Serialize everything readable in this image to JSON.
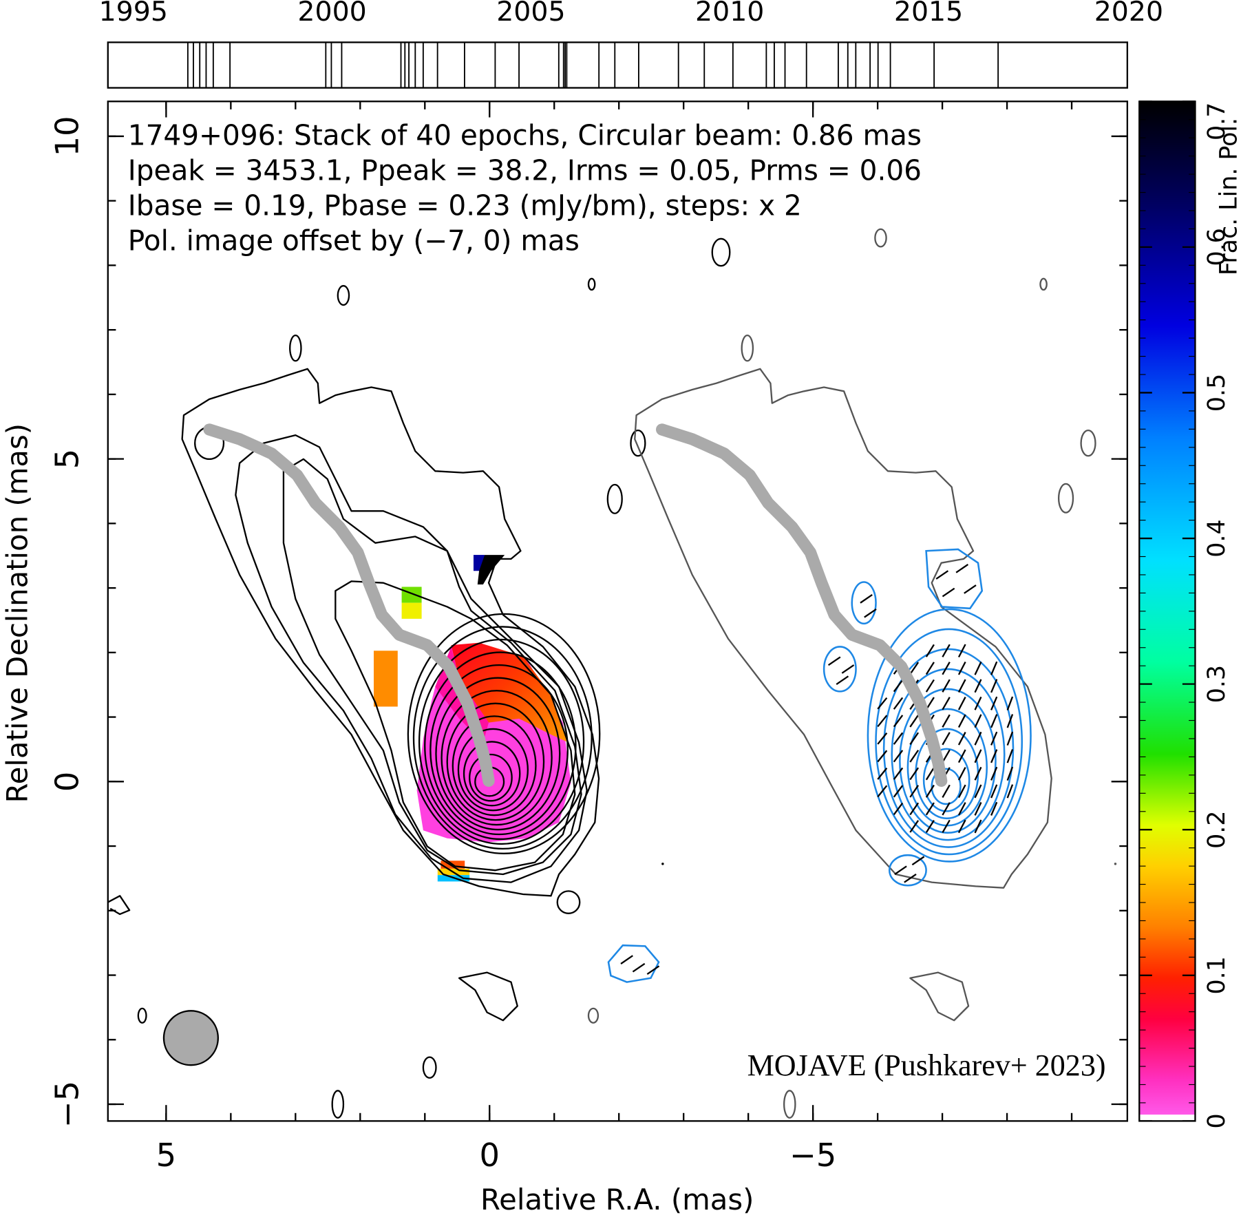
{
  "chart_data": {
    "type": "contour-map",
    "title_lines": [
      "1749+096: Stack of 40 epochs, Circular beam: 0.86 mas",
      "Ipeak = 3453.1, Ppeak = 38.2, Irms = 0.05, Prms = 0.06",
      "Ibase = 0.19, Pbase = 0.23 (mJy/bm), steps: x 2"
    ],
    "annotation": "Pol. image offset by (−7, 0) mas",
    "annotation_color": "#1e88e5",
    "credit": "MOJAVE (Pushkarev+ 2023)",
    "credit_color": "#1010e0",
    "xlabel": "Relative R.A. (mas)",
    "ylabel": "Relative Declination (mas)",
    "xlim": [
      5.9,
      -9.86
    ],
    "ylim": [
      -5.26,
      10.54
    ],
    "xticks": [
      5,
      0,
      {
        "value": -5,
        "label": "−5"
      }
    ],
    "yticks": [
      {
        "value": -5,
        "label": "−5"
      },
      0,
      5,
      10
    ],
    "xminorticks": [
      5,
      4,
      3,
      2,
      1,
      0,
      -1,
      -2,
      -3,
      -4,
      -5,
      -6,
      -7,
      -8,
      -9
    ],
    "yminorticks": [
      -5,
      -4,
      -3,
      -2,
      -1,
      0,
      1,
      2,
      3,
      4,
      5,
      6,
      7,
      8,
      9,
      10
    ],
    "timeline": {
      "xlim": [
        1994.36,
        2020
      ],
      "xticks": [
        1995,
        2000,
        2005,
        2010,
        2015,
        2020
      ],
      "epochs": [
        1996.37,
        1996.51,
        1996.67,
        1996.83,
        1997.01,
        1997.43,
        1999.84,
        1999.98,
        2000.24,
        2001.73,
        2001.83,
        2001.93,
        2002.09,
        2002.29,
        2002.65,
        2003.33,
        2004.1,
        2004.7,
        2005.7,
        2005.82,
        2005.86,
        2005.9,
        2006.71,
        2007.11,
        2007.71,
        2008.71,
        2009.36,
        2010.08,
        2010.92,
        2011.12,
        2011.39,
        2011.93,
        2012.73,
        2012.97,
        2013.17,
        2013.53,
        2013.73,
        2014.04,
        2015.14,
        2016.75
      ]
    },
    "colorbar": {
      "label": "Frac. Lin. Pol.",
      "ylim": [
        0,
        0.7
      ],
      "yticks": [
        0,
        0.1,
        0.2,
        0.3,
        0.4,
        0.5,
        0.6,
        0.7
      ]
    }
  }
}
